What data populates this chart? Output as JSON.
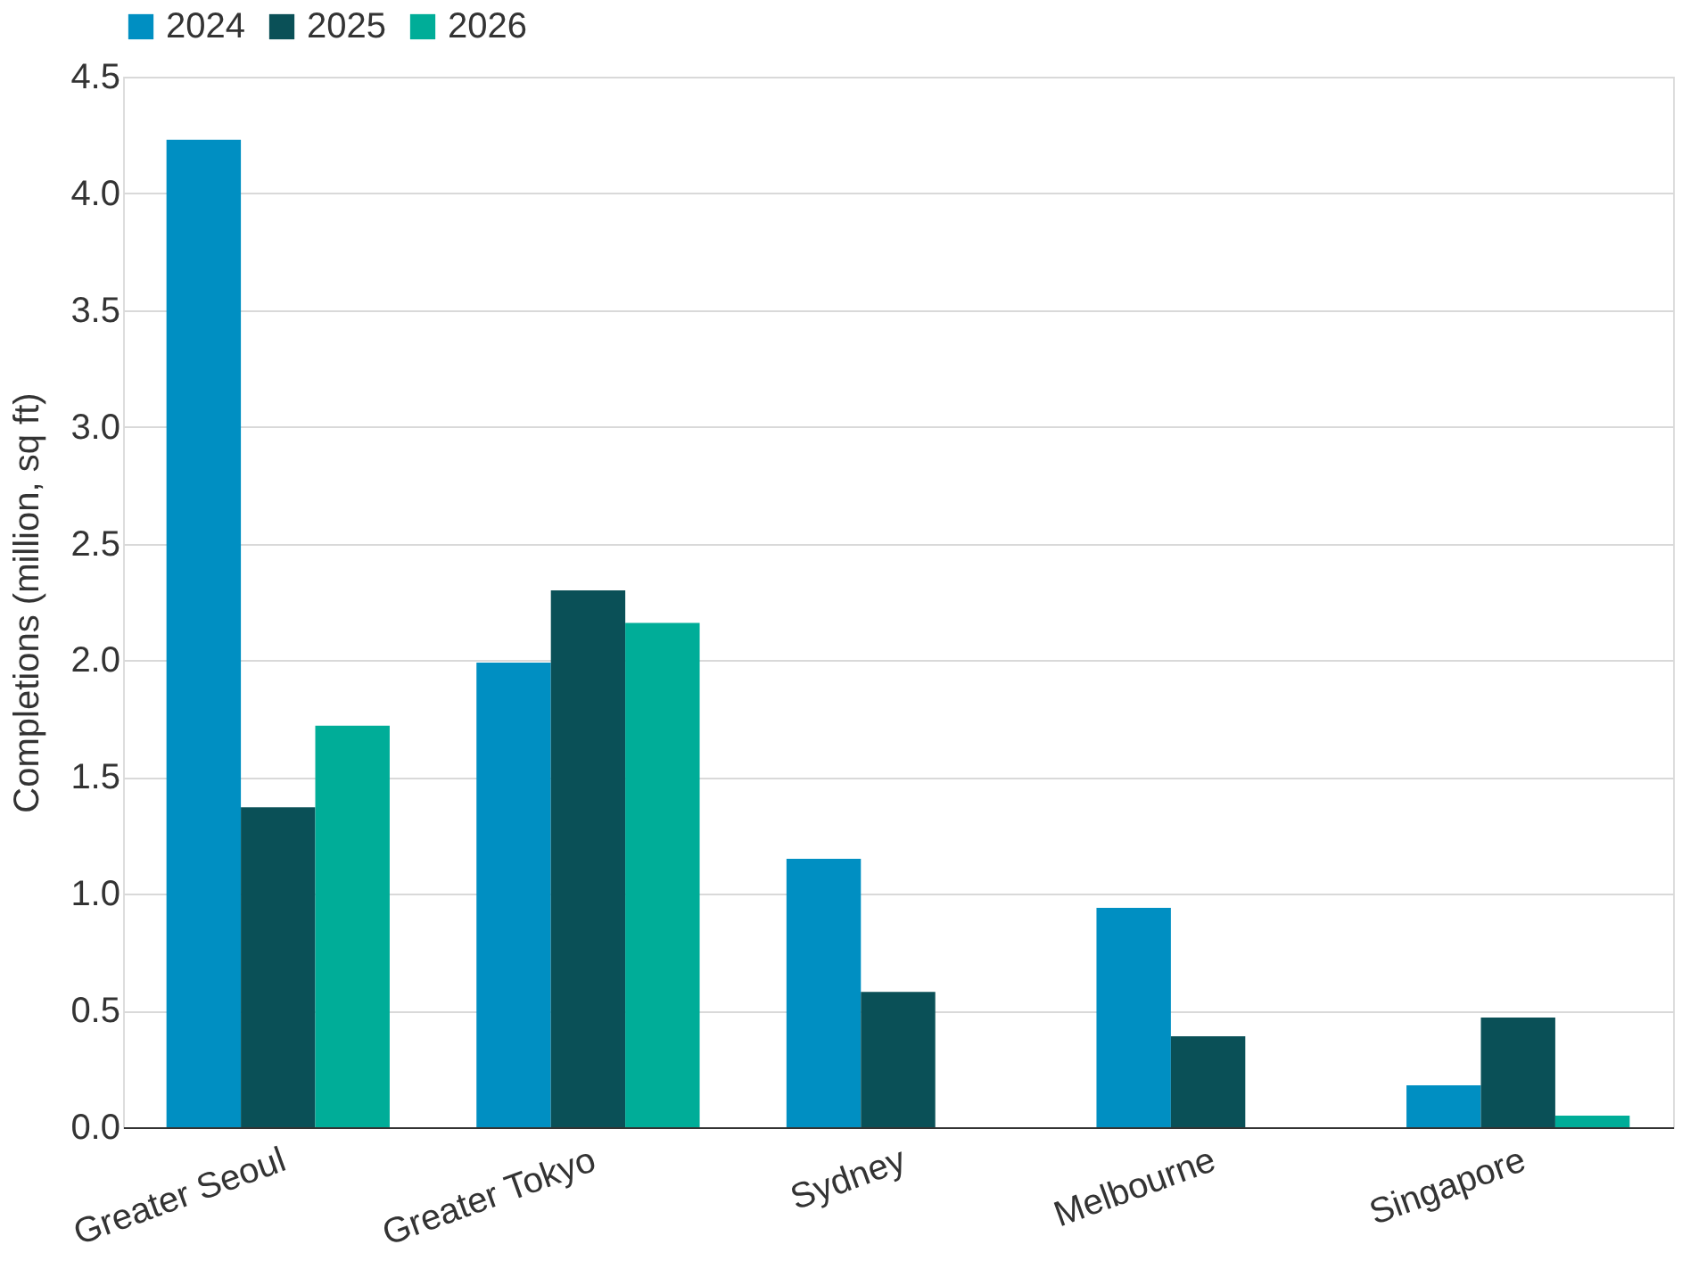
{
  "chart_data": {
    "type": "bar",
    "ylabel": "Completions (million, sq ft)",
    "categories": [
      "Greater Seoul",
      "Greater Tokyo",
      "Sydney",
      "Melbourne",
      "Singapore"
    ],
    "series": [
      {
        "name": "2024",
        "color": "#008fc2",
        "values": [
          4.23,
          1.99,
          1.15,
          0.94,
          0.18
        ]
      },
      {
        "name": "2025",
        "color": "#0a5057",
        "values": [
          1.37,
          2.3,
          0.58,
          0.39,
          0.47
        ]
      },
      {
        "name": "2026",
        "color": "#00ad98",
        "values": [
          1.72,
          2.16,
          null,
          null,
          0.05
        ]
      }
    ],
    "ylim": [
      0,
      4.5
    ],
    "yticks": [
      {
        "value": 0,
        "label": "0.0"
      },
      0.5,
      {
        "value": 1,
        "label": "1.0"
      },
      1.5,
      {
        "value": 2,
        "label": "2.0"
      },
      2.5,
      {
        "value": 3,
        "label": "3.0"
      },
      3.5,
      {
        "value": 4,
        "label": "4.0"
      },
      4.5
    ],
    "grid": "y",
    "legend": "top"
  }
}
